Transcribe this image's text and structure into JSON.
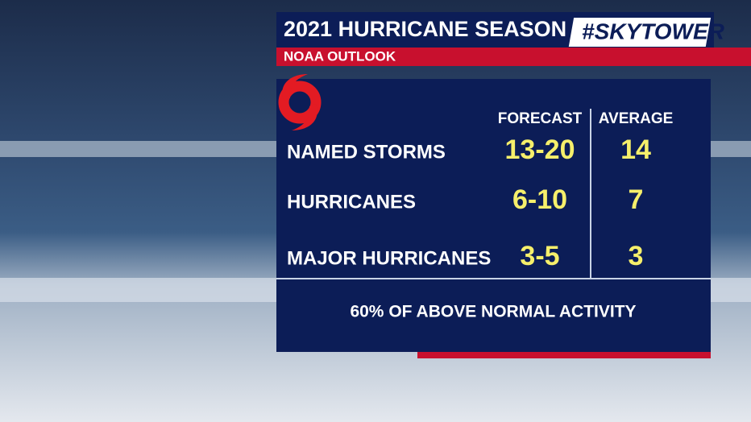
{
  "header": {
    "title": "2021 HURRICANE SEASON",
    "brand": "#SKYTOWER",
    "subtitle": "NOAA OUTLOOK"
  },
  "table": {
    "columns": [
      "FORECAST",
      "AVERAGE"
    ],
    "rows": [
      [
        "NAMED STORMS",
        "13-20",
        "14"
      ],
      [
        "HURRICANES",
        "6-10",
        "7"
      ],
      [
        "MAJOR HURRICANES",
        "3-5",
        "3"
      ]
    ]
  },
  "footer": "60% OF ABOVE NORMAL ACTIVITY"
}
